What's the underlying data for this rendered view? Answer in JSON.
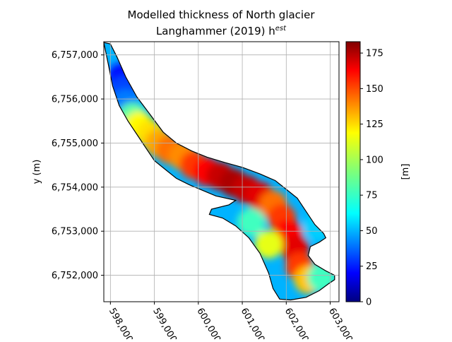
{
  "chart_data": {
    "type": "heatmap",
    "title_line1": "Modelled thickness of North glacier",
    "title_line2_prefix": "Langhammer (2019) h",
    "title_line2_sup": "est",
    "ylabel": "y (m)",
    "xlabel": "",
    "colorbar_label": "[m]",
    "colormap": "jet",
    "grid": true,
    "xlim": [
      597850,
      603200
    ],
    "ylim": [
      6751400,
      6757300
    ],
    "x_ticks": [
      598000,
      599000,
      600000,
      601000,
      602000,
      603000
    ],
    "x_tick_labels": [
      "598,000",
      "599,000",
      "600,000",
      "601,000",
      "602,000",
      "603,000"
    ],
    "y_ticks": [
      6752000,
      6753000,
      6754000,
      6755000,
      6756000,
      6757000
    ],
    "y_tick_labels": [
      "6,752,000",
      "6,753,000",
      "6,754,000",
      "6,755,000",
      "6,756,000",
      "6,757,000"
    ],
    "colorbar_range": [
      0,
      183
    ],
    "colorbar_ticks": [
      0,
      25,
      50,
      75,
      100,
      125,
      150,
      175
    ],
    "colorbar_tick_labels": [
      "0",
      "25",
      "50",
      "75",
      "100",
      "125",
      "150",
      "175"
    ],
    "outline": [
      [
        597850,
        6757280
      ],
      [
        598000,
        6757250
      ],
      [
        598150,
        6756950
      ],
      [
        598350,
        6756500
      ],
      [
        598600,
        6756050
      ],
      [
        598900,
        6755650
      ],
      [
        599200,
        6755250
      ],
      [
        599500,
        6755000
      ],
      [
        599850,
        6754820
      ],
      [
        600200,
        6754680
      ],
      [
        600600,
        6754560
      ],
      [
        601000,
        6754450
      ],
      [
        601400,
        6754300
      ],
      [
        601750,
        6754150
      ],
      [
        602000,
        6753950
      ],
      [
        602250,
        6753750
      ],
      [
        602450,
        6753450
      ],
      [
        602650,
        6753150
      ],
      [
        602850,
        6752950
      ],
      [
        602900,
        6752850
      ],
      [
        602750,
        6752750
      ],
      [
        602550,
        6752650
      ],
      [
        602500,
        6752450
      ],
      [
        602650,
        6752250
      ],
      [
        602900,
        6752100
      ],
      [
        603100,
        6752000
      ],
      [
        603100,
        6751900
      ],
      [
        602950,
        6751800
      ],
      [
        602750,
        6751650
      ],
      [
        602450,
        6751500
      ],
      [
        602100,
        6751440
      ],
      [
        601850,
        6751460
      ],
      [
        601700,
        6751700
      ],
      [
        601600,
        6752050
      ],
      [
        601400,
        6752500
      ],
      [
        601150,
        6752850
      ],
      [
        600850,
        6753120
      ],
      [
        600550,
        6753300
      ],
      [
        600250,
        6753380
      ],
      [
        600300,
        6753500
      ],
      [
        600700,
        6753600
      ],
      [
        600850,
        6753700
      ],
      [
        600400,
        6753800
      ],
      [
        599800,
        6754050
      ],
      [
        599500,
        6754200
      ],
      [
        599250,
        6754400
      ],
      [
        599000,
        6754600
      ],
      [
        598800,
        6754900
      ],
      [
        598600,
        6755200
      ],
      [
        598400,
        6755500
      ],
      [
        598200,
        6755850
      ],
      [
        598050,
        6756300
      ],
      [
        597950,
        6756800
      ],
      [
        597850,
        6757280
      ]
    ],
    "thickness_points": [
      {
        "x": 598250,
        "y": 6756500,
        "v": 25
      },
      {
        "x": 598300,
        "y": 6756200,
        "v": 35
      },
      {
        "x": 598350,
        "y": 6755900,
        "v": 45
      },
      {
        "x": 598500,
        "y": 6755600,
        "v": 85
      },
      {
        "x": 598650,
        "y": 6755400,
        "v": 115
      },
      {
        "x": 598900,
        "y": 6755200,
        "v": 120
      },
      {
        "x": 599100,
        "y": 6755000,
        "v": 130
      },
      {
        "x": 599350,
        "y": 6754850,
        "v": 140
      },
      {
        "x": 599650,
        "y": 6754700,
        "v": 135
      },
      {
        "x": 599900,
        "y": 6754500,
        "v": 150
      },
      {
        "x": 600200,
        "y": 6754350,
        "v": 160
      },
      {
        "x": 600500,
        "y": 6754250,
        "v": 170
      },
      {
        "x": 600800,
        "y": 6754100,
        "v": 175
      },
      {
        "x": 601100,
        "y": 6753950,
        "v": 170
      },
      {
        "x": 601400,
        "y": 6753800,
        "v": 165
      },
      {
        "x": 601700,
        "y": 6753600,
        "v": 140
      },
      {
        "x": 601900,
        "y": 6753300,
        "v": 150
      },
      {
        "x": 602050,
        "y": 6752950,
        "v": 160
      },
      {
        "x": 602200,
        "y": 6752600,
        "v": 165
      },
      {
        "x": 602300,
        "y": 6752200,
        "v": 150
      },
      {
        "x": 602500,
        "y": 6751900,
        "v": 125
      },
      {
        "x": 602800,
        "y": 6751950,
        "v": 80
      },
      {
        "x": 602700,
        "y": 6753100,
        "v": 60
      },
      {
        "x": 601600,
        "y": 6752700,
        "v": 110
      },
      {
        "x": 601200,
        "y": 6753200,
        "v": 80
      }
    ]
  }
}
